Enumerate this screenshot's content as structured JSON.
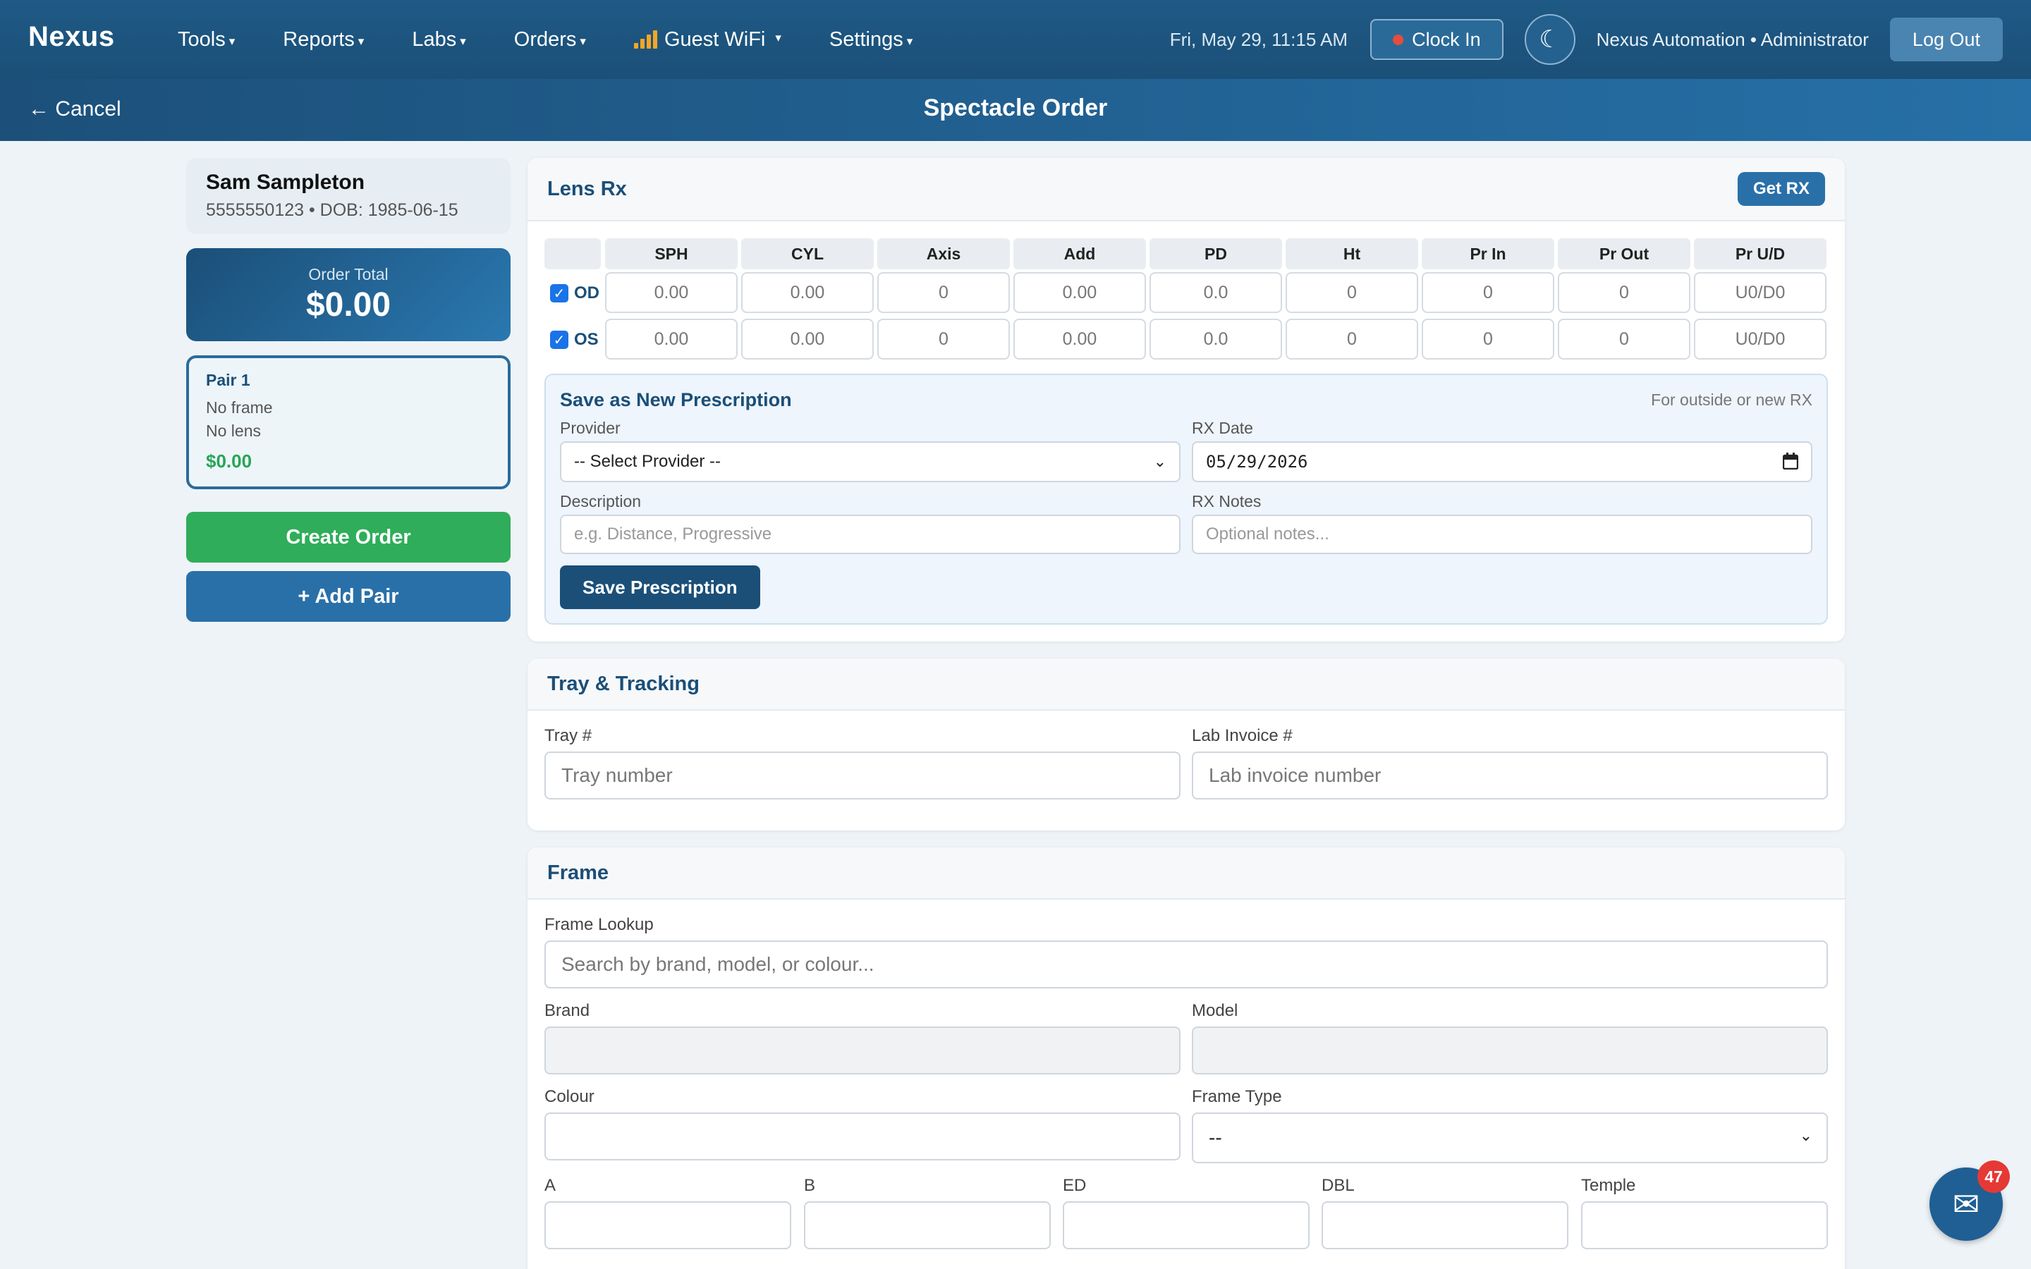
{
  "nav": {
    "brand": "Nexus",
    "menu": [
      {
        "label": "Tools"
      },
      {
        "label": "Reports"
      },
      {
        "label": "Labs"
      },
      {
        "label": "Orders"
      },
      {
        "label": "Guest WiFi"
      },
      {
        "label": "Settings"
      }
    ],
    "caret": "▾",
    "datetime": "Fri, May 29, 11:15 AM",
    "clock_in": "Clock In",
    "theme_icon": "☾",
    "user": "Nexus Automation • Administrator",
    "logout": "Log Out"
  },
  "subheader": {
    "cancel": "← Cancel",
    "title": "Spectacle Order"
  },
  "patient": {
    "name": "Sam Sampleton",
    "meta": "5555550123 • DOB: 1985-06-15"
  },
  "order_total": {
    "label": "Order Total",
    "amount": "$0.00"
  },
  "pair": {
    "title": "Pair 1",
    "frame": "No frame",
    "lens": "No lens",
    "price": "$0.00"
  },
  "actions": {
    "create": "Create Order",
    "add_pair": "+ Add Pair"
  },
  "lens_rx": {
    "title": "Lens Rx",
    "get_rx": "Get RX",
    "columns": [
      "SPH",
      "CYL",
      "Axis",
      "Add",
      "PD",
      "Ht",
      "Pr In",
      "Pr Out",
      "Pr U/D"
    ],
    "rows": [
      {
        "eye": "OD",
        "checked": true,
        "values": [
          "0.00",
          "0.00",
          "0",
          "0.00",
          "0.0",
          "0",
          "0",
          "0",
          "U0/D0"
        ]
      },
      {
        "eye": "OS",
        "checked": true,
        "values": [
          "0.00",
          "0.00",
          "0",
          "0.00",
          "0.0",
          "0",
          "0",
          "0",
          "U0/D0"
        ]
      }
    ],
    "save_panel": {
      "title": "Save as New Prescription",
      "hint": "For outside or new RX",
      "provider_label": "Provider",
      "provider_value": "-- Select Provider --",
      "date_label": "RX Date",
      "date_value": "05/29/2026",
      "description_label": "Description",
      "description_placeholder": "e.g. Distance, Progressive",
      "notes_label": "RX Notes",
      "notes_placeholder": "Optional notes...",
      "save_button": "Save Prescription"
    }
  },
  "tray": {
    "title": "Tray & Tracking",
    "tray_label": "Tray #",
    "tray_placeholder": "Tray number",
    "invoice_label": "Lab Invoice #",
    "invoice_placeholder": "Lab invoice number"
  },
  "frame": {
    "title": "Frame",
    "lookup_label": "Frame Lookup",
    "lookup_placeholder": "Search by brand, model, or colour...",
    "brand_label": "Brand",
    "model_label": "Model",
    "colour_label": "Colour",
    "type_label": "Frame Type",
    "type_value": "--",
    "a_label": "A",
    "b_label": "B",
    "ed_label": "ED",
    "dbl_label": "DBL",
    "temple_label": "Temple"
  },
  "messages": {
    "badge": "47"
  }
}
